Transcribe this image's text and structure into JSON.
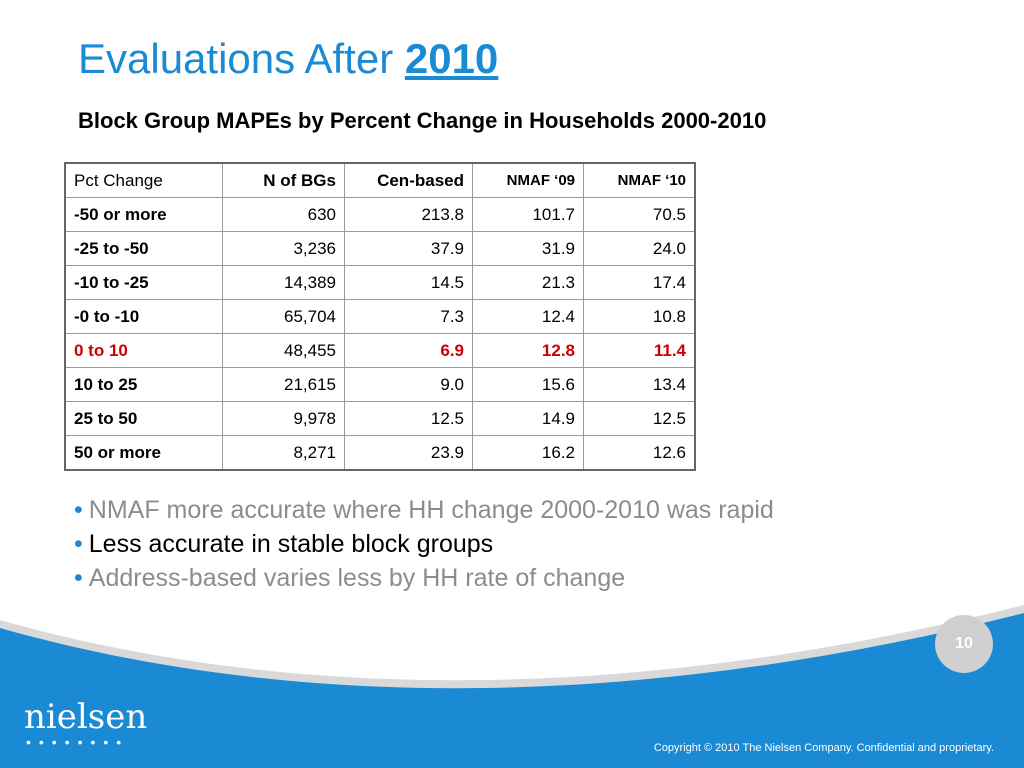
{
  "slide": {
    "title_prefix": "Evaluations After",
    "title_year": "2010",
    "subtitle": "Block Group MAPEs by Percent Change in Households 2000-2010",
    "page_number": "10"
  },
  "table": {
    "headers": [
      "Pct Change",
      "N of BGs",
      "Cen-based",
      "NMAF ‘09",
      "NMAF ‘10"
    ],
    "rows": [
      [
        "-50 or more",
        "630",
        "213.8",
        "101.7",
        "70.5"
      ],
      [
        "-25 to -50",
        "3,236",
        "37.9",
        "31.9",
        "24.0"
      ],
      [
        "-10 to -25",
        "14,389",
        "14.5",
        "21.3",
        "17.4"
      ],
      [
        "-0 to -10",
        "65,704",
        "7.3",
        "12.4",
        "10.8"
      ],
      [
        "0 to 10",
        "48,455",
        "6.9",
        "12.8",
        "11.4"
      ],
      [
        "10 to 25",
        "21,615",
        "9.0",
        "15.6",
        "13.4"
      ],
      [
        "25 to 50",
        "9,978",
        "12.5",
        "14.9",
        "12.5"
      ],
      [
        "50 or more",
        "8,271",
        "23.9",
        "16.2",
        "12.6"
      ]
    ],
    "highlight_row": 4,
    "highlight_color": "#cc0000"
  },
  "bullets": [
    "NMAF more accurate where HH change 2000-2010 was rapid",
    "Less accurate in stable block groups",
    "Address-based varies less by HH rate of change"
  ],
  "footer": {
    "logo": "nielsen",
    "copyright": "Copyright © 2010 The Nielsen Company. Confidential and proprietary."
  },
  "colors": {
    "accent": "#1a8ad4",
    "footer_blue": "#1a8ad4",
    "bullet_gray": "#8c8c8c"
  }
}
